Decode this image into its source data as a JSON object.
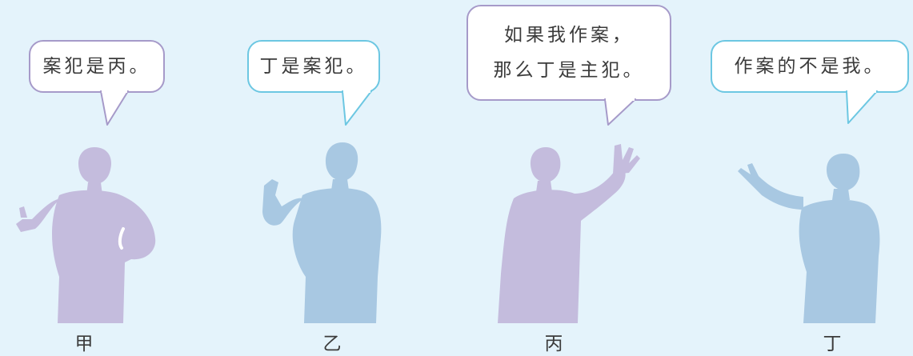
{
  "colors": {
    "background": "#e4f3fb",
    "purple_border": "#a69ac9",
    "blue_border": "#6cc7e2",
    "purple_silhouette": "#c4bcdd",
    "blue_silhouette": "#a8c8e2"
  },
  "speakers": [
    {
      "name": "甲",
      "statement_lines": [
        "案犯是丙。"
      ],
      "silhouette_color": "purple"
    },
    {
      "name": "乙",
      "statement_lines": [
        "丁是案犯。"
      ],
      "silhouette_color": "blue"
    },
    {
      "name": "丙",
      "statement_lines": [
        "如果我作案，",
        "那么丁是主犯。"
      ],
      "silhouette_color": "purple"
    },
    {
      "name": "丁",
      "statement_lines": [
        "作案的不是我。"
      ],
      "silhouette_color": "blue"
    }
  ]
}
